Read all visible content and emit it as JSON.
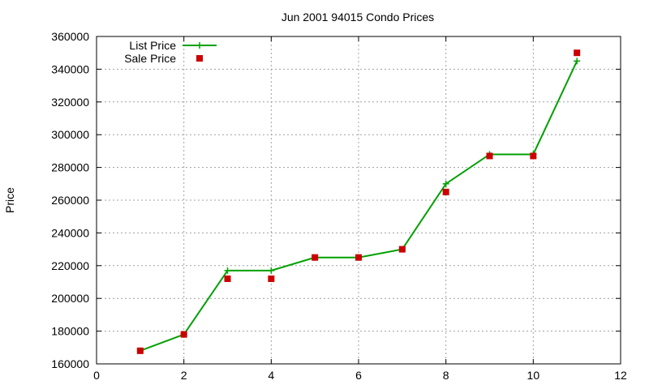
{
  "chart_data": {
    "type": "line",
    "title": "Jun 2001 94015 Condo Prices",
    "xlabel": "",
    "ylabel": "Price",
    "xlim": [
      0,
      12
    ],
    "ylim": [
      160000,
      360000
    ],
    "x_ticks": [
      0,
      2,
      4,
      6,
      8,
      10,
      12
    ],
    "y_ticks": [
      160000,
      180000,
      200000,
      220000,
      240000,
      260000,
      280000,
      300000,
      320000,
      340000,
      360000
    ],
    "grid": true,
    "legend_position": "top-left",
    "series": [
      {
        "name": "List Price",
        "kind": "line",
        "color": "#00a000",
        "marker": "plus",
        "x": [
          1,
          2,
          3,
          4,
          5,
          6,
          7,
          8,
          9,
          10,
          11
        ],
        "y": [
          168000,
          178000,
          217000,
          217000,
          225000,
          225000,
          230000,
          270000,
          288000,
          288000,
          345000
        ]
      },
      {
        "name": "Sale Price",
        "kind": "scatter",
        "color": "#cc0000",
        "marker": "square",
        "x": [
          1,
          2,
          3,
          4,
          5,
          6,
          7,
          8,
          9,
          10,
          11
        ],
        "y": [
          168000,
          178000,
          212000,
          212000,
          225000,
          225000,
          230000,
          265000,
          287000,
          287000,
          350000
        ]
      }
    ]
  }
}
